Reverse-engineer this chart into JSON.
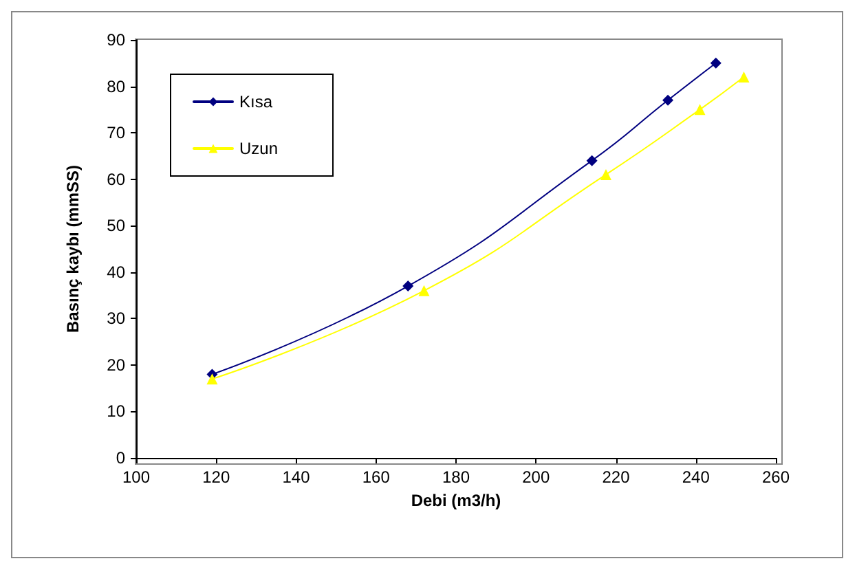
{
  "chart_data": {
    "type": "line",
    "xlabel": "Debi (m3/h)",
    "ylabel": "Basınç kaybı (mmSS)",
    "xlim": [
      100,
      260
    ],
    "xticks": [
      100,
      120,
      140,
      160,
      180,
      200,
      220,
      240,
      260
    ],
    "ylim": [
      0,
      90
    ],
    "yticks": [
      0,
      10,
      20,
      30,
      40,
      50,
      60,
      70,
      80,
      90
    ],
    "grid": false,
    "legend": "top left",
    "series": [
      {
        "name": "Kısa",
        "color": "#000080",
        "marker": "diamond",
        "x": [
          119,
          168,
          214,
          233,
          245
        ],
        "values": [
          18,
          37,
          64,
          77,
          85
        ]
      },
      {
        "name": "Uzun",
        "color": "#ffff00",
        "marker": "triangle",
        "x": [
          119,
          172,
          217.5,
          241,
          252
        ],
        "values": [
          17,
          36,
          61,
          75,
          82
        ]
      }
    ]
  }
}
